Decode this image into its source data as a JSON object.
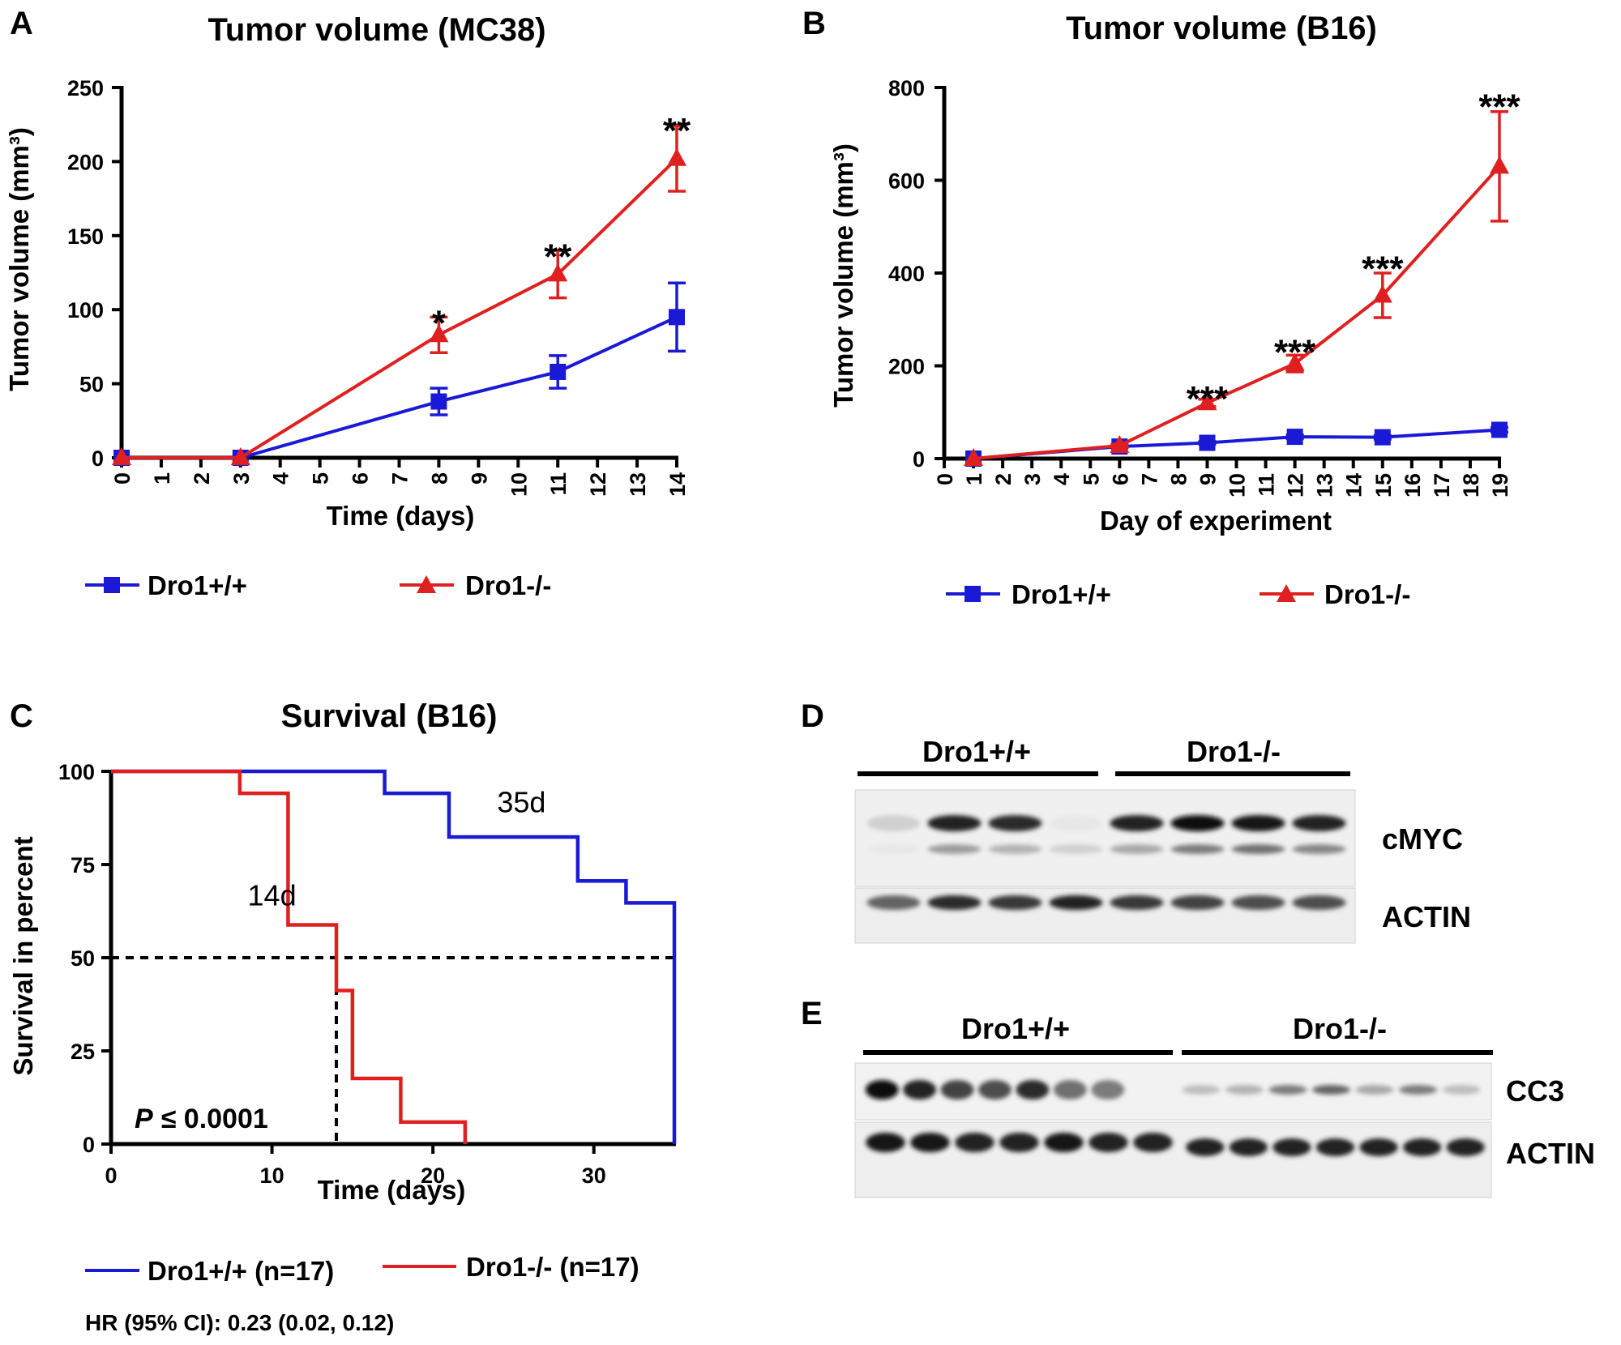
{
  "panel_labels": {
    "a": "A",
    "b": "B",
    "c": "C",
    "d": "D",
    "e": "E"
  },
  "colors": {
    "wt": "#1a1ad6",
    "ko": "#e02020",
    "axis": "#000000"
  },
  "chart_data": [
    {
      "id": "A",
      "type": "line",
      "title": "Tumor volume (MC38)",
      "xlabel": "Time (days)",
      "ylabel": "Tumor volume (mm³)",
      "xlim": [
        0,
        14
      ],
      "ylim": [
        0,
        250
      ],
      "xticks": [
        "0",
        "1",
        "2",
        "3",
        "4",
        "5",
        "6",
        "7",
        "8",
        "9",
        "10",
        "11",
        "12",
        "13",
        "14"
      ],
      "yticks": [
        "0",
        "50",
        "100",
        "150",
        "200",
        "250"
      ],
      "series": [
        {
          "name": "Dro1+/+",
          "marker": "square",
          "x": [
            0,
            3,
            8,
            11,
            14
          ],
          "y": [
            0,
            0,
            38,
            58,
            95
          ],
          "err": [
            0,
            0,
            9,
            11,
            23
          ]
        },
        {
          "name": "Dro1-/-",
          "marker": "triangle",
          "x": [
            0,
            3,
            8,
            11,
            14
          ],
          "y": [
            0,
            0,
            83,
            124,
            202
          ],
          "err": [
            0,
            0,
            12,
            16,
            22
          ]
        }
      ],
      "annotations": [
        {
          "x": 8,
          "y": 96,
          "text": "*"
        },
        {
          "x": 11,
          "y": 141,
          "text": "**"
        },
        {
          "x": 14,
          "y": 226,
          "text": "**"
        }
      ],
      "legend": "bottom"
    },
    {
      "id": "B",
      "type": "line",
      "title": "Tumor volume (B16)",
      "xlabel": "Day of experiment",
      "ylabel": "Tumor volume (mm³)",
      "xlim": [
        0,
        19
      ],
      "ylim": [
        0,
        800
      ],
      "xticks": [
        "0",
        "1",
        "2",
        "3",
        "4",
        "5",
        "6",
        "7",
        "8",
        "9",
        "10",
        "11",
        "12",
        "13",
        "14",
        "15",
        "16",
        "17",
        "18",
        "19"
      ],
      "yticks": [
        "0",
        "200",
        "400",
        "600",
        "800"
      ],
      "series": [
        {
          "name": "Dro1+/+",
          "marker": "square",
          "x": [
            1,
            6,
            9,
            12,
            15,
            19
          ],
          "y": [
            0,
            26,
            34,
            47,
            46,
            62
          ],
          "err": [
            0,
            3,
            3,
            4,
            4,
            5
          ]
        },
        {
          "name": "Dro1-/-",
          "marker": "triangle",
          "x": [
            1,
            6,
            9,
            12,
            15,
            19
          ],
          "y": [
            0,
            28,
            120,
            205,
            352,
            630
          ],
          "err": [
            0,
            3,
            8,
            18,
            48,
            118
          ]
        }
      ],
      "annotations": [
        {
          "x": 9,
          "y": 145,
          "text": "***"
        },
        {
          "x": 12,
          "y": 245,
          "text": "***"
        },
        {
          "x": 15,
          "y": 425,
          "text": "***"
        },
        {
          "x": 19,
          "y": 775,
          "text": "***"
        }
      ],
      "legend": "bottom"
    },
    {
      "id": "C",
      "type": "line",
      "title": "Survival (B16)",
      "xlabel": "Time (days)",
      "ylabel": "Survival in percent",
      "xlim": [
        0,
        35
      ],
      "ylim": [
        0,
        100
      ],
      "xticks": [
        "0",
        "10",
        "20",
        "30"
      ],
      "yticks": [
        "0",
        "25",
        "50",
        "75",
        "100"
      ],
      "series": [
        {
          "name": "Dro1+/+ (n=17)",
          "step": true,
          "x": [
            0,
            17,
            21,
            29,
            32,
            35
          ],
          "y": [
            100,
            94.1,
            82.4,
            70.6,
            64.7,
            0
          ]
        },
        {
          "name": "Dro1-/- (n=17)",
          "step": true,
          "x": [
            0,
            8,
            11,
            14,
            15,
            18,
            22
          ],
          "y": [
            100,
            94.1,
            58.8,
            41.2,
            17.6,
            5.9,
            0
          ]
        }
      ],
      "median": {
        "y": 50,
        "ko_x": 14,
        "wt_x": 35
      },
      "annotations": [
        {
          "x": 25.5,
          "y": 89,
          "text": "35d"
        },
        {
          "x": 10,
          "y": 64,
          "text": "14d"
        }
      ],
      "pvalue": {
        "label": "P",
        "text": "≤ 0.0001"
      },
      "hr_text": "HR (95% CI): 0.23 (0.02, 0.12)",
      "legend": "bottom"
    }
  ],
  "blot_d": {
    "group_wt": "Dro1+/+",
    "group_ko": "Dro1-/-",
    "rows": [
      "cMYC",
      "ACTIN"
    ],
    "cmyc_upper": [
      0.12,
      0.9,
      0.85,
      0.02,
      0.9,
      1.0,
      0.95,
      0.9
    ],
    "cmyc_lower": [
      0.02,
      0.35,
      0.25,
      0.12,
      0.3,
      0.5,
      0.55,
      0.45
    ],
    "actin": [
      0.6,
      0.85,
      0.8,
      0.9,
      0.8,
      0.75,
      0.7,
      0.7
    ]
  },
  "blot_e": {
    "group_wt": "Dro1+/+",
    "group_ko": "Dro1-/-",
    "rows": [
      "CC3",
      "ACTIN"
    ],
    "cc3": [
      1.0,
      0.9,
      0.75,
      0.7,
      0.85,
      0.55,
      0.5,
      0.2,
      0.25,
      0.5,
      0.6,
      0.3,
      0.5,
      0.2
    ],
    "actin": [
      0.95,
      0.95,
      0.9,
      0.9,
      0.95,
      0.9,
      0.9,
      0.9,
      0.9,
      0.9,
      0.9,
      0.9,
      0.9,
      0.9
    ]
  }
}
